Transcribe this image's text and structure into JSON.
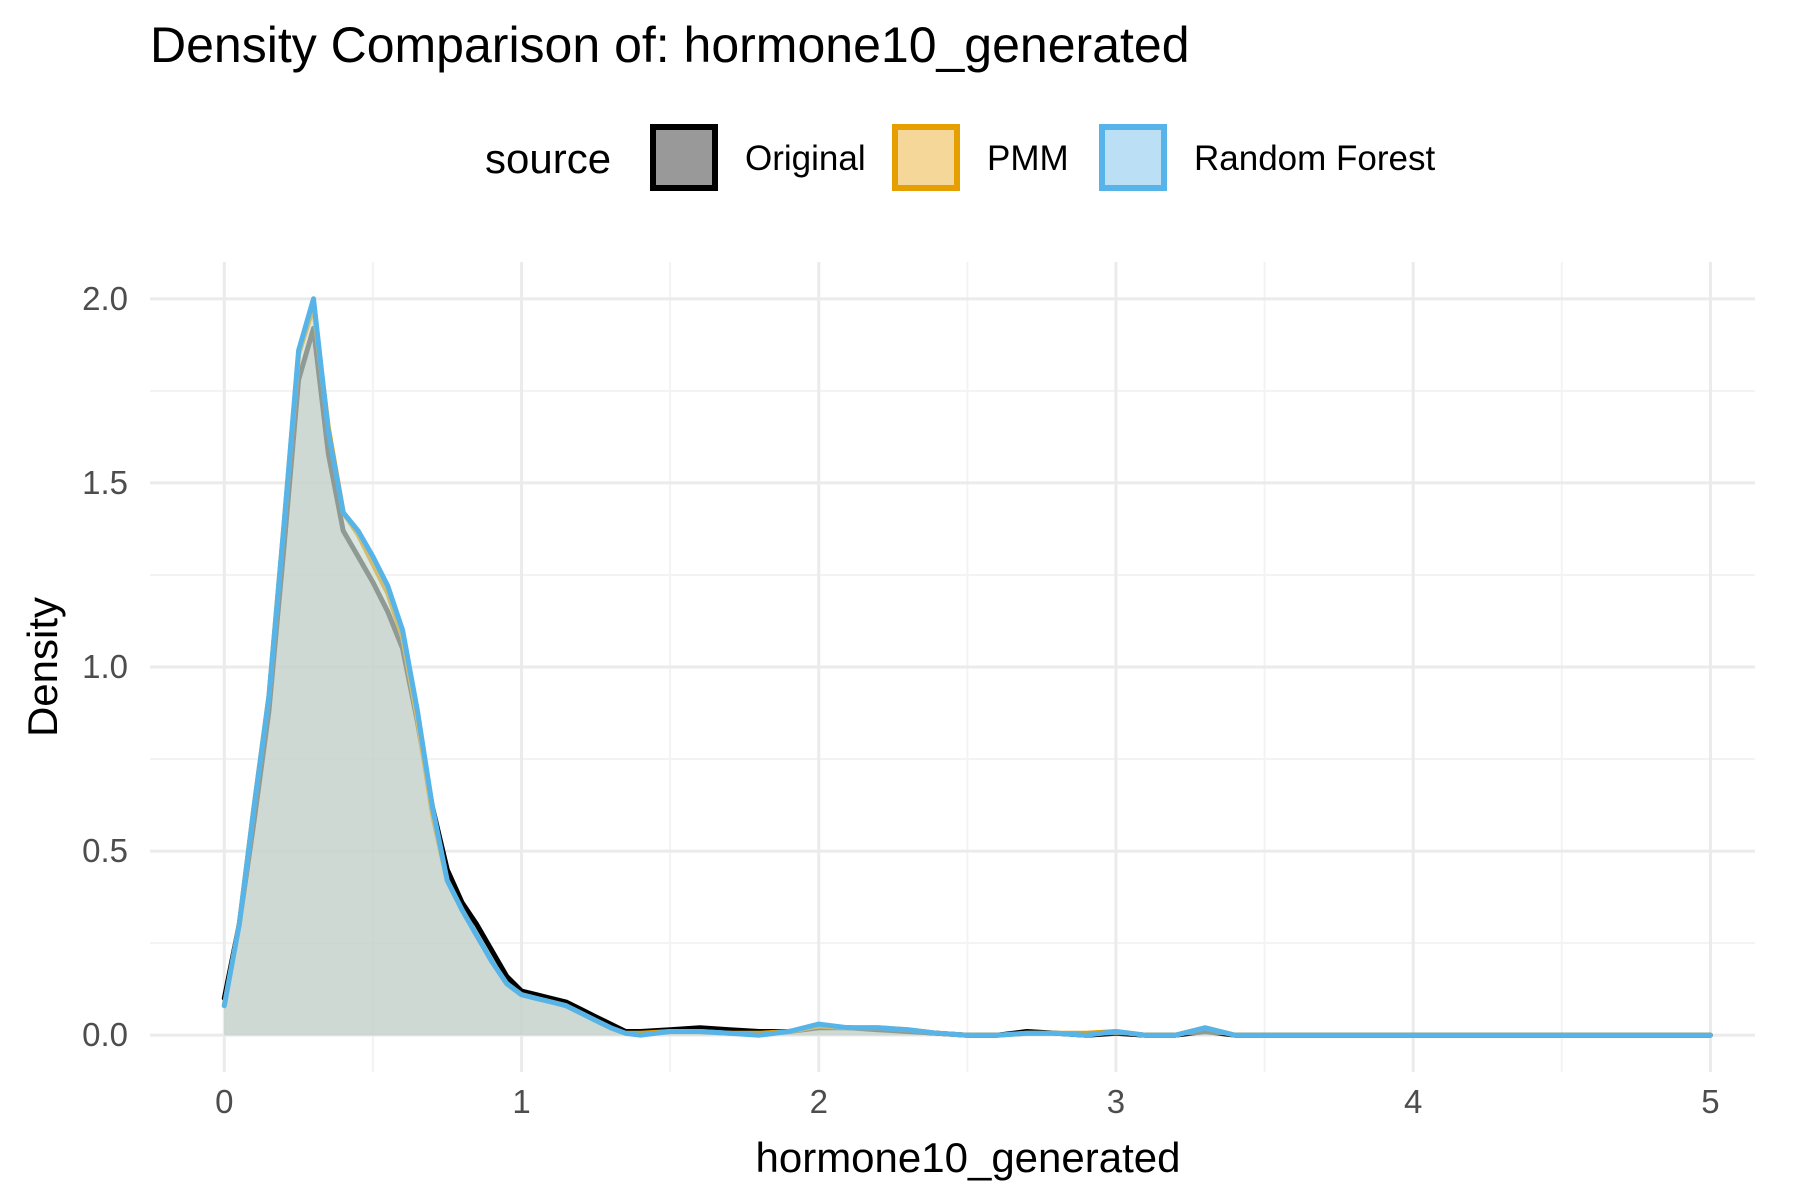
{
  "chart_data": {
    "type": "area",
    "title": "Density Comparison of: hormone10_generated",
    "xlabel": "hormone10_generated",
    "ylabel": "Density",
    "xlim": [
      -0.25,
      5.15
    ],
    "ylim": [
      -0.1,
      2.1
    ],
    "x_ticks": [
      0,
      1,
      2,
      3,
      4,
      5
    ],
    "x_tick_labels": [
      "0",
      "1",
      "2",
      "3",
      "4",
      "5"
    ],
    "y_ticks": [
      0,
      0.5,
      1,
      1.5,
      2
    ],
    "y_tick_labels": [
      "0.0",
      "0.5",
      "1.0",
      "1.5",
      "2.0"
    ],
    "grid": true,
    "legend": {
      "title": "source",
      "placement": "top",
      "entries": [
        "Original",
        "PMM",
        "Random Forest"
      ]
    },
    "colors": {
      "Original": {
        "fill": "#999999",
        "line": "#000000"
      },
      "PMM": {
        "fill": "#F5D899",
        "line": "#E69F00"
      },
      "Random Forest": {
        "fill": "#BBDFF5",
        "line": "#56B4E9"
      }
    },
    "series": [
      {
        "name": "Original",
        "x": [
          0,
          0.05,
          0.1,
          0.15,
          0.2,
          0.25,
          0.3,
          0.35,
          0.4,
          0.45,
          0.5,
          0.55,
          0.6,
          0.65,
          0.7,
          0.75,
          0.8,
          0.85,
          0.9,
          0.95,
          1.0,
          1.05,
          1.1,
          1.15,
          1.2,
          1.25,
          1.3,
          1.35,
          1.4,
          1.5,
          1.6,
          1.7,
          1.8,
          1.9,
          2.0,
          2.1,
          2.2,
          2.3,
          2.4,
          2.5,
          2.6,
          2.7,
          2.8,
          2.9,
          3.0,
          3.1,
          3.2,
          3.3,
          3.4,
          3.5,
          4.0,
          4.5,
          5.0
        ],
        "y": [
          0.1,
          0.3,
          0.58,
          0.88,
          1.32,
          1.78,
          1.92,
          1.58,
          1.37,
          1.3,
          1.23,
          1.15,
          1.05,
          0.85,
          0.62,
          0.45,
          0.36,
          0.3,
          0.23,
          0.16,
          0.12,
          0.11,
          0.1,
          0.09,
          0.07,
          0.05,
          0.03,
          0.01,
          0.01,
          0.015,
          0.02,
          0.015,
          0.01,
          0.01,
          0.02,
          0.02,
          0.015,
          0.01,
          0.005,
          0.0,
          0.0,
          0.01,
          0.005,
          0.0,
          0.005,
          0.0,
          0.0,
          0.01,
          0.0,
          0.0,
          0.0,
          0.0,
          0.0
        ]
      },
      {
        "name": "PMM",
        "x": [
          0,
          0.05,
          0.1,
          0.15,
          0.2,
          0.25,
          0.3,
          0.35,
          0.4,
          0.45,
          0.5,
          0.55,
          0.6,
          0.65,
          0.7,
          0.75,
          0.8,
          0.85,
          0.9,
          0.95,
          1.0,
          1.05,
          1.1,
          1.15,
          1.2,
          1.25,
          1.3,
          1.35,
          1.4,
          1.5,
          1.6,
          1.7,
          1.8,
          1.9,
          2.0,
          2.1,
          2.2,
          2.3,
          2.4,
          2.5,
          2.6,
          2.7,
          2.8,
          2.9,
          3.0,
          3.1,
          3.2,
          3.3,
          3.4,
          3.5,
          4.0,
          4.5,
          5.0
        ],
        "y": [
          0.08,
          0.3,
          0.62,
          0.92,
          1.38,
          1.85,
          1.98,
          1.65,
          1.42,
          1.36,
          1.28,
          1.2,
          1.08,
          0.86,
          0.6,
          0.42,
          0.34,
          0.27,
          0.2,
          0.14,
          0.11,
          0.1,
          0.09,
          0.08,
          0.06,
          0.04,
          0.02,
          0.005,
          0.005,
          0.01,
          0.01,
          0.005,
          0.005,
          0.01,
          0.025,
          0.02,
          0.02,
          0.015,
          0.005,
          0.0,
          0.0,
          0.005,
          0.005,
          0.005,
          0.01,
          0.0,
          0.0,
          0.02,
          0.0,
          0.0,
          0.0,
          0.0,
          0.0
        ]
      },
      {
        "name": "Random Forest",
        "x": [
          0,
          0.05,
          0.1,
          0.15,
          0.2,
          0.25,
          0.3,
          0.35,
          0.4,
          0.45,
          0.5,
          0.55,
          0.6,
          0.65,
          0.7,
          0.75,
          0.8,
          0.85,
          0.9,
          0.95,
          1.0,
          1.05,
          1.1,
          1.15,
          1.2,
          1.25,
          1.3,
          1.35,
          1.4,
          1.5,
          1.6,
          1.7,
          1.8,
          1.9,
          2.0,
          2.1,
          2.2,
          2.3,
          2.4,
          2.5,
          2.6,
          2.7,
          2.8,
          2.9,
          3.0,
          3.1,
          3.2,
          3.3,
          3.4,
          3.5,
          4.0,
          4.5,
          5.0
        ],
        "y": [
          0.08,
          0.3,
          0.62,
          0.92,
          1.38,
          1.86,
          2.0,
          1.64,
          1.42,
          1.37,
          1.3,
          1.22,
          1.1,
          0.88,
          0.62,
          0.42,
          0.34,
          0.27,
          0.2,
          0.14,
          0.11,
          0.1,
          0.09,
          0.08,
          0.06,
          0.04,
          0.02,
          0.005,
          0.0,
          0.01,
          0.01,
          0.005,
          0.0,
          0.01,
          0.03,
          0.02,
          0.02,
          0.015,
          0.005,
          0.0,
          0.0,
          0.005,
          0.005,
          0.0,
          0.01,
          0.0,
          0.0,
          0.02,
          0.0,
          0.0,
          0.0,
          0.0,
          0.0
        ]
      }
    ]
  }
}
